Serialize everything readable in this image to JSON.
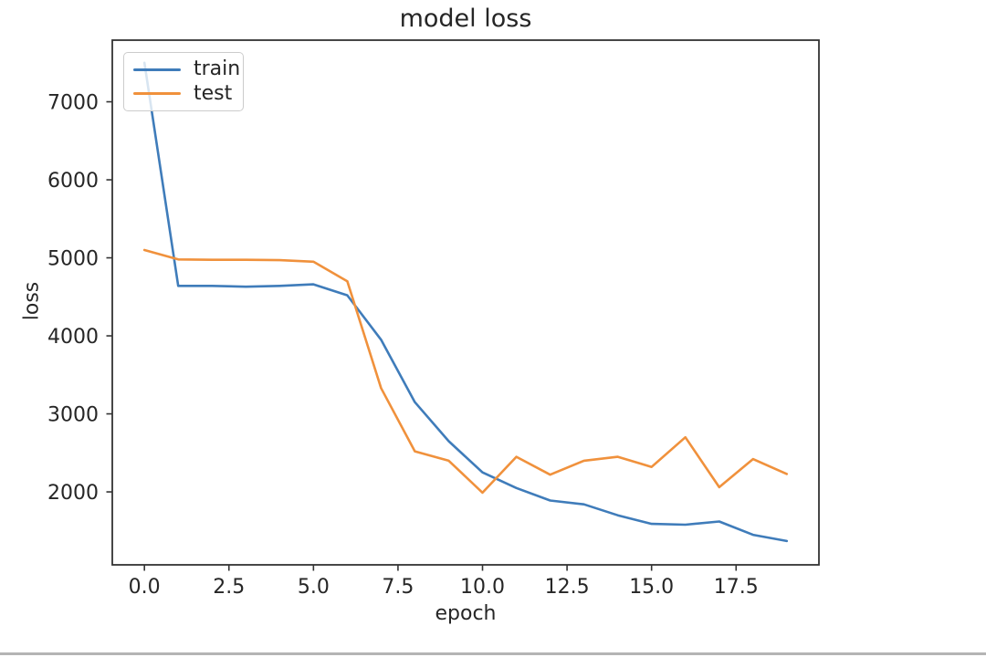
{
  "page": {
    "background": "#ffffff",
    "bottom_bar_color": "#b4b4b4"
  },
  "chart_data": {
    "type": "line",
    "title": "model loss",
    "xlabel": "epoch",
    "ylabel": "loss",
    "x": [
      0,
      1,
      2,
      3,
      4,
      5,
      6,
      7,
      8,
      9,
      10,
      11,
      12,
      13,
      14,
      15,
      16,
      17,
      18,
      19
    ],
    "series": [
      {
        "name": "train",
        "color": "#3f7cba",
        "values": [
          7500,
          4640,
          4640,
          4630,
          4640,
          4660,
          4520,
          3950,
          3150,
          2650,
          2250,
          2050,
          1890,
          1840,
          1700,
          1590,
          1580,
          1620,
          1450,
          1370
        ]
      },
      {
        "name": "test",
        "color": "#f0913c",
        "values": [
          5100,
          4980,
          4975,
          4975,
          4970,
          4950,
          4700,
          3330,
          2520,
          2400,
          1990,
          2450,
          2220,
          2400,
          2450,
          2320,
          2700,
          2060,
          2420,
          2230
        ]
      }
    ],
    "xlim": [
      -0.95,
      19.95
    ],
    "ylim": [
      1065,
      7790
    ],
    "xticks": [
      {
        "value": 0,
        "label": "0.0"
      },
      {
        "value": 2.5,
        "label": "2.5"
      },
      {
        "value": 5,
        "label": "5.0"
      },
      {
        "value": 7.5,
        "label": "7.5"
      },
      {
        "value": 10,
        "label": "10.0"
      },
      {
        "value": 12.5,
        "label": "12.5"
      },
      {
        "value": 15,
        "label": "15.0"
      },
      {
        "value": 17.5,
        "label": "17.5"
      }
    ],
    "yticks": [
      {
        "value": 2000,
        "label": "2000"
      },
      {
        "value": 3000,
        "label": "3000"
      },
      {
        "value": 4000,
        "label": "4000"
      },
      {
        "value": 5000,
        "label": "5000"
      },
      {
        "value": 6000,
        "label": "6000"
      },
      {
        "value": 7000,
        "label": "7000"
      }
    ],
    "grid": false,
    "legend_position": "upper left",
    "axis_color": "#333333",
    "text_color": "#262626"
  }
}
